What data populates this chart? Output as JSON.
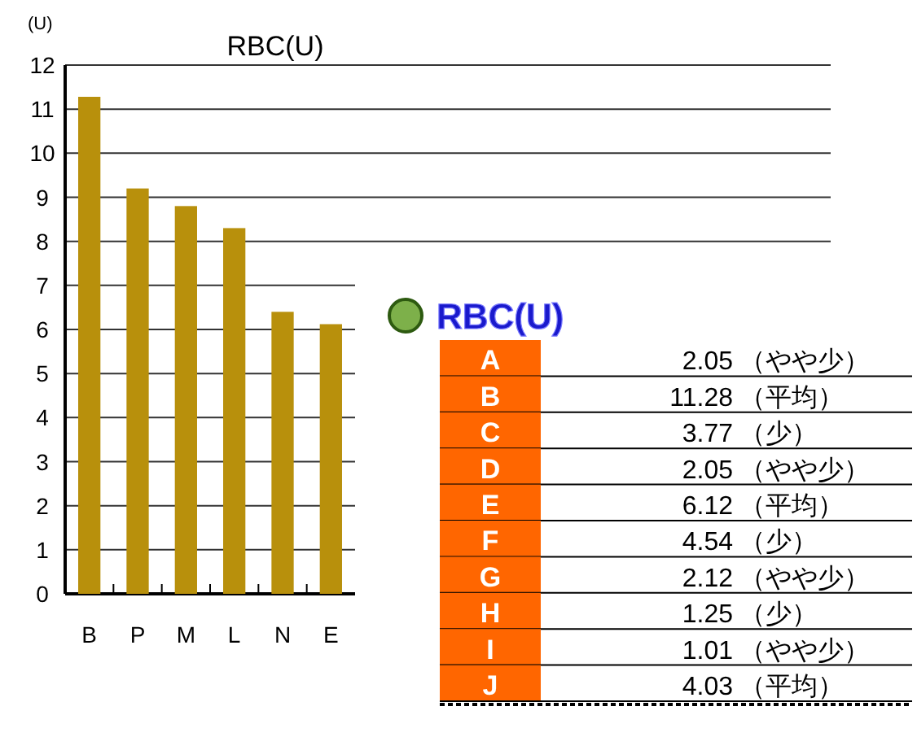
{
  "chart_data": [
    {
      "type": "bar",
      "title": "RBC(U)",
      "ylabel": "(U)",
      "categories": [
        "B",
        "P",
        "M",
        "L",
        "N",
        "E"
      ],
      "values": [
        11.28,
        9.2,
        8.8,
        8.3,
        6.4,
        6.12
      ],
      "color": "#b8900c",
      "ylim": [
        0,
        12
      ],
      "yticks": [
        0,
        1,
        2,
        3,
        4,
        5,
        6,
        7,
        8,
        9,
        10,
        11,
        12
      ],
      "grid": "y"
    },
    {
      "type": "other",
      "title": "RBC(U)",
      "categories": [
        "A",
        "B",
        "C",
        "D",
        "E",
        "F",
        "G",
        "H",
        "I",
        "J"
      ],
      "values": [
        2.05,
        11.28,
        3.77,
        2.05,
        6.12,
        4.54,
        2.12,
        1.25,
        1.01,
        4.03
      ],
      "data_labels": true,
      "annotations": [
        "（やや少）",
        "（平均）",
        "（少）",
        "（やや少）",
        "（平均）",
        "（少）",
        "（やや少）",
        "（少）",
        "（やや少）",
        "（平均）"
      ],
      "color": "#ff6600"
    }
  ]
}
